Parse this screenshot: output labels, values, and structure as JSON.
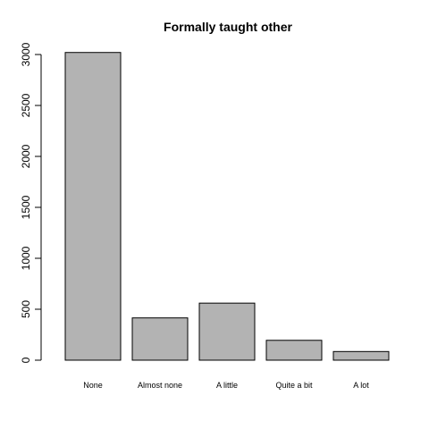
{
  "chart_data": {
    "type": "bar",
    "title": "Formally taught other",
    "xlabel": "",
    "ylabel": "",
    "categories": [
      "None",
      "Almost none",
      "A little",
      "Quite a bit",
      "A lot"
    ],
    "values": [
      3020,
      415,
      560,
      195,
      85
    ],
    "ylim": [
      0,
      3000
    ],
    "yticks": [
      0,
      500,
      1000,
      1500,
      2000,
      2500,
      3000
    ],
    "grid": false,
    "legend": "none",
    "bar_color": "#b3b3b3",
    "edge_color": "#000000"
  }
}
